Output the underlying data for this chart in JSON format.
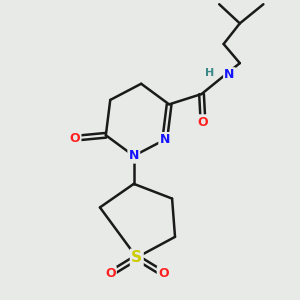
{
  "bg_color": "#e8eae8",
  "bond_color": "#1a1a1a",
  "bond_width": 1.8,
  "atom_colors": {
    "N": "#1414ff",
    "O": "#ff2020",
    "S": "#cccc00",
    "H": "#3a8888",
    "C": "#1a1a1a"
  },
  "figure_size": [
    3.0,
    3.0
  ],
  "dpi": 100,
  "xlim": [
    0,
    10
  ],
  "ylim": [
    0,
    10
  ]
}
